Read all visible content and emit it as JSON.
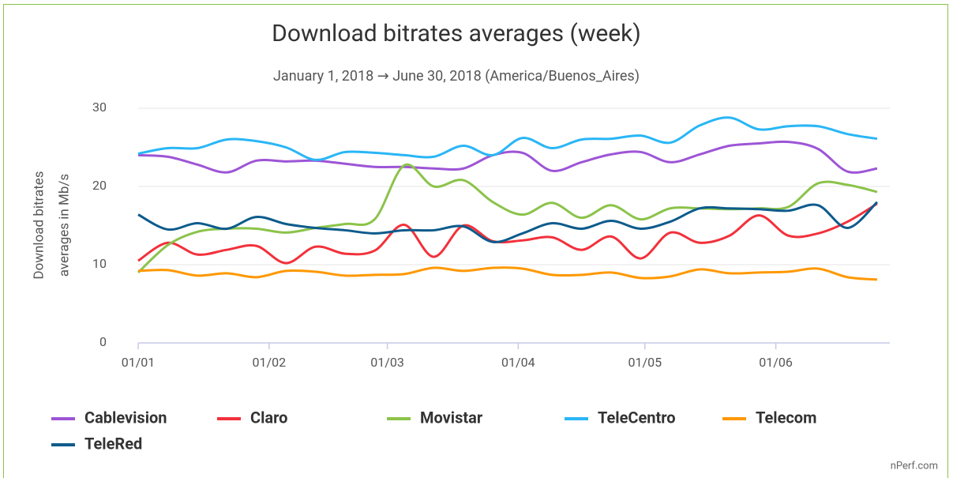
{
  "chart_data": {
    "type": "line",
    "title": "Download bitrates averages (week)",
    "subtitle": "January 1, 2018 → June 30, 2018 (America/Buenos_Aires)",
    "y_label": [
      "Download bitrates",
      "averages in Mb/s"
    ],
    "credit": "nPerf.com",
    "x": [
      0,
      7,
      14,
      21,
      28,
      35,
      42,
      49,
      56,
      63,
      70,
      77,
      84,
      91,
      98,
      105,
      112,
      119,
      126,
      133,
      140,
      147,
      154,
      161,
      168,
      175
    ],
    "xlim": [
      0,
      178
    ],
    "xticks": [
      {
        "value": 0,
        "label": "01/01"
      },
      {
        "value": 31,
        "label": "01/02"
      },
      {
        "value": 59,
        "label": "01/03"
      },
      {
        "value": 90,
        "label": "01/04"
      },
      {
        "value": 120,
        "label": "01/05"
      },
      {
        "value": 151,
        "label": "01/06"
      }
    ],
    "ylim": [
      0,
      30
    ],
    "yticks": [
      0,
      10,
      20,
      30
    ],
    "grid": true,
    "legend": "bottom",
    "series": [
      {
        "name": "Cablevision",
        "color": "#9d55d6",
        "values": [
          24,
          23.8,
          22.8,
          21.8,
          23.3,
          23.2,
          23.3,
          22.9,
          22.5,
          22.5,
          22.3,
          22.3,
          24,
          24.3,
          22,
          23.1,
          24.1,
          24.4,
          23.1,
          24.1,
          25.2,
          25.5,
          25.7,
          24.8,
          21.9,
          22.3
        ]
      },
      {
        "name": "Claro",
        "color": "#f2313b",
        "values": [
          10.5,
          12.8,
          11.3,
          11.9,
          12.4,
          10.2,
          12.3,
          11.4,
          11.8,
          15.1,
          11,
          15,
          13,
          13.1,
          13.5,
          11.9,
          13.6,
          10.8,
          14.1,
          12.8,
          13.7,
          16.3,
          13.7,
          14,
          15.5,
          17.8
        ]
      },
      {
        "name": "Movistar",
        "color": "#8bc34a",
        "values": [
          9,
          12.5,
          14.2,
          14.6,
          14.6,
          14.1,
          14.7,
          15.2,
          15.8,
          22.7,
          20,
          20.8,
          18,
          16.4,
          17.9,
          16,
          17.6,
          15.8,
          17.2,
          17.2,
          17.1,
          17.2,
          17.4,
          20.4,
          20.2,
          19.3
        ]
      },
      {
        "name": "TeleCentro",
        "color": "#29b6f6",
        "values": [
          24.2,
          24.9,
          24.9,
          26,
          25.8,
          25,
          23.4,
          24.4,
          24.3,
          24,
          23.8,
          25.2,
          24,
          26.2,
          24.9,
          26,
          26.1,
          26.5,
          25.6,
          27.8,
          28.8,
          27.3,
          27.7,
          27.7,
          26.7,
          26.1
        ]
      },
      {
        "name": "Telecom",
        "color": "#ff9800",
        "values": [
          9.2,
          9.3,
          8.6,
          8.9,
          8.4,
          9.2,
          9.1,
          8.6,
          8.7,
          8.8,
          9.6,
          9.2,
          9.6,
          9.5,
          8.7,
          8.7,
          9.0,
          8.3,
          8.5,
          9.4,
          8.9,
          9.0,
          9.1,
          9.5,
          8.4,
          8.1
        ]
      },
      {
        "name": "TeleRed",
        "color": "#0d5b8c",
        "values": [
          16.4,
          14.5,
          15.3,
          14.6,
          16.1,
          15.2,
          14.7,
          14.4,
          14,
          14.4,
          14.4,
          14.9,
          12.9,
          14,
          15.3,
          14.6,
          15.6,
          14.6,
          15.5,
          17.2,
          17.2,
          17.1,
          16.9,
          17.6,
          14.7,
          18
        ]
      }
    ]
  }
}
